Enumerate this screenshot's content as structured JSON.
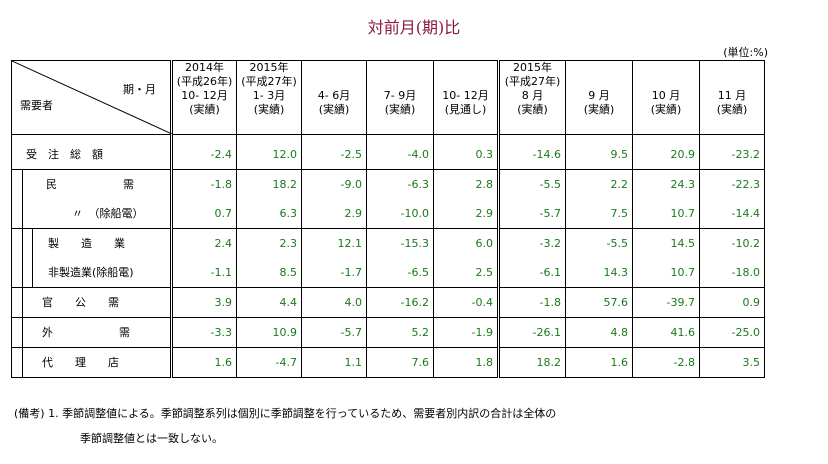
{
  "title": "対前月(期)比",
  "unit": "(単位:%)",
  "header": {
    "corner_top": "期・月",
    "corner_bottom": "需要者",
    "columns": [
      {
        "l1": "2014年",
        "l2": "(平成26年)",
        "l3": "10- 12月",
        "l4": "(実績)"
      },
      {
        "l1": "2015年",
        "l2": "(平成27年)",
        "l3": "1- 3月",
        "l4": "(実績)"
      },
      {
        "l1": "",
        "l2": "",
        "l3": "4- 6月",
        "l4": "(実績)"
      },
      {
        "l1": "",
        "l2": "",
        "l3": "7- 9月",
        "l4": "(実績)"
      },
      {
        "l1": "",
        "l2": "",
        "l3": "10- 12月",
        "l4": "(見通し)"
      },
      {
        "l1": "2015年",
        "l2": "(平成27年)",
        "l3": "8 月",
        "l4": "(実績)"
      },
      {
        "l1": "",
        "l2": "",
        "l3": "9 月",
        "l4": "(実績)"
      },
      {
        "l1": "",
        "l2": "",
        "l3": "10 月",
        "l4": "(実績)"
      },
      {
        "l1": "",
        "l2": "",
        "l3": "11 月",
        "l4": "(実績)"
      }
    ]
  },
  "rows": [
    {
      "label": "受　注　総　額",
      "values": [
        "-2.4",
        "12.0",
        "-2.5",
        "-4.0",
        "0.3",
        "-14.6",
        "9.5",
        "20.9",
        "-23.2"
      ]
    },
    {
      "label": "民　　　　　　需",
      "values": [
        "-1.8",
        "18.2",
        "-9.0",
        "-6.3",
        "2.8",
        "-5.5",
        "2.2",
        "24.3",
        "-22.3"
      ]
    },
    {
      "label": "〃　（除船電）",
      "values": [
        "0.7",
        "6.3",
        "2.9",
        "-10.0",
        "2.9",
        "-5.7",
        "7.5",
        "10.7",
        "-14.4"
      ]
    },
    {
      "label": "製　　造　　業",
      "values": [
        "2.4",
        "2.3",
        "12.1",
        "-15.3",
        "6.0",
        "-3.2",
        "-5.5",
        "14.5",
        "-10.2"
      ]
    },
    {
      "label": "非製造業(除船電)",
      "values": [
        "-1.1",
        "8.5",
        "-1.7",
        "-6.5",
        "2.5",
        "-6.1",
        "14.3",
        "10.7",
        "-18.0"
      ]
    },
    {
      "label": "官　　公　　需",
      "values": [
        "3.9",
        "4.4",
        "4.0",
        "-16.2",
        "-0.4",
        "-1.8",
        "57.6",
        "-39.7",
        "0.9"
      ]
    },
    {
      "label": "外　　　　　　需",
      "values": [
        "-3.3",
        "10.9",
        "-5.7",
        "5.2",
        "-1.9",
        "-26.1",
        "4.8",
        "41.6",
        "-25.0"
      ]
    },
    {
      "label": "代　　理　　店",
      "values": [
        "1.6",
        "-4.7",
        "1.1",
        "7.6",
        "1.8",
        "18.2",
        "1.6",
        "-2.8",
        "3.5"
      ]
    }
  ],
  "notes": {
    "line1": "(備考) 1. 季節調整値による。季節調整系列は個別に季節調整を行っているため、需要者別内訳の合計は全体の",
    "line2": "季節調整値とは一致しない。"
  }
}
